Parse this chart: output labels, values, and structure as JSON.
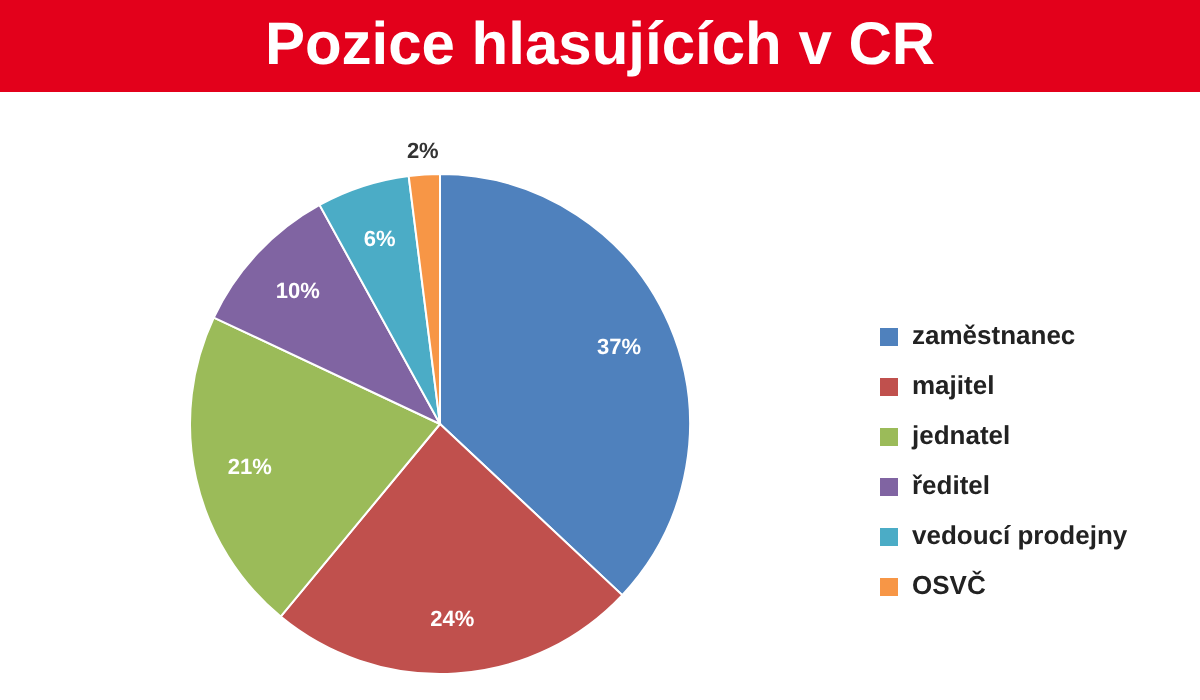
{
  "chart_data": {
    "type": "pie",
    "title": "Pozice hlasujících v CR",
    "categories": [
      "zaměstnanec",
      "majitel",
      "jednatel",
      "ředitel",
      "vedoucí prodejny",
      "OSVČ"
    ],
    "values": [
      37,
      24,
      21,
      10,
      6,
      2
    ],
    "colors": [
      "#4f81bd",
      "#c0504d",
      "#9bbb59",
      "#8064a2",
      "#4bacc6",
      "#f79646"
    ],
    "value_labels": [
      "37%",
      "24%",
      "21%",
      "10%",
      "6%",
      "2%"
    ],
    "legend": "right"
  }
}
